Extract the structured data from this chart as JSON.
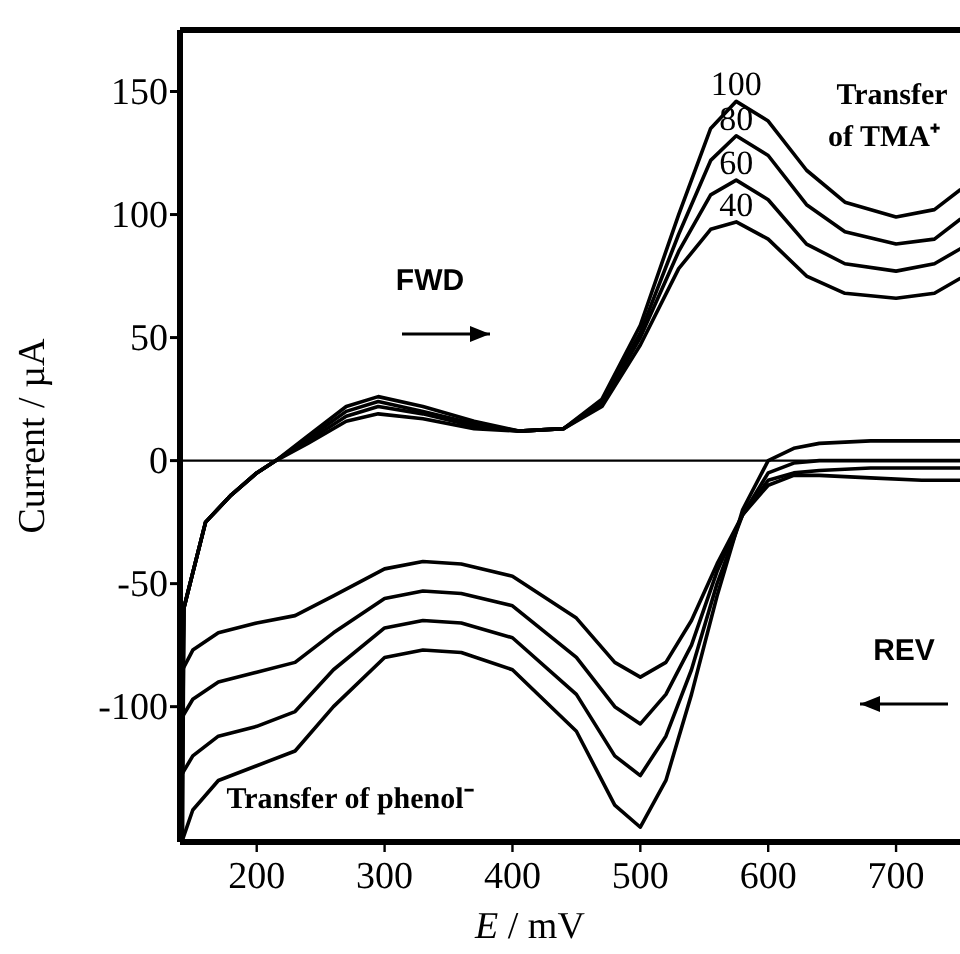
{
  "chart_data": {
    "type": "line",
    "xlabel": "E / mV",
    "ylabel": "Current / µA",
    "xlim": [
      140,
      750
    ],
    "ylim": [
      -155,
      175
    ],
    "xticks": [
      200,
      300,
      400,
      500,
      600,
      700
    ],
    "yticks": [
      150,
      100,
      50,
      0,
      -50,
      -100
    ],
    "grid": false,
    "marker": "none",
    "line_style": "solid",
    "ref_lines": [
      {
        "axis": "y",
        "value": 0,
        "label": null,
        "color": "#000000"
      }
    ],
    "annotations": [
      "FWD",
      "REV",
      "Transfer of TMA⁺",
      "Transfer of phenol⁻"
    ],
    "series": [
      {
        "name": "100",
        "color": "#000000",
        "x": [
          142,
          143,
          160,
          180,
          200,
          215,
          240,
          270,
          295,
          330,
          370,
          405,
          440,
          470,
          500,
          530,
          555,
          575,
          600,
          630,
          660,
          700,
          730,
          750
        ],
        "values": [
          -154,
          -60,
          -25,
          -14,
          -5,
          0,
          10,
          22,
          26,
          22,
          16,
          12,
          13,
          25,
          55,
          100,
          135,
          146,
          138,
          118,
          105,
          99,
          102,
          110
        ]
      },
      {
        "name": "80",
        "color": "#000000",
        "x": [
          142,
          143,
          160,
          180,
          200,
          215,
          240,
          270,
          295,
          330,
          370,
          405,
          440,
          470,
          500,
          530,
          555,
          575,
          600,
          630,
          660,
          700,
          730,
          750
        ],
        "values": [
          -127,
          -60,
          -25,
          -14,
          -5,
          0,
          9,
          20,
          24,
          20,
          15,
          12,
          13,
          24,
          52,
          92,
          122,
          132,
          124,
          104,
          93,
          88,
          90,
          98
        ]
      },
      {
        "name": "60",
        "color": "#000000",
        "x": [
          142,
          143,
          160,
          180,
          200,
          215,
          240,
          270,
          295,
          330,
          370,
          405,
          440,
          470,
          500,
          530,
          555,
          575,
          600,
          630,
          660,
          700,
          730,
          750
        ],
        "values": [
          -104,
          -60,
          -25,
          -14,
          -5,
          0,
          8,
          18,
          22,
          19,
          14,
          12,
          13,
          23,
          50,
          85,
          108,
          114,
          106,
          88,
          80,
          77,
          80,
          86
        ]
      },
      {
        "name": "40",
        "color": "#000000",
        "x": [
          142,
          143,
          160,
          180,
          200,
          215,
          240,
          270,
          295,
          330,
          370,
          405,
          440,
          470,
          500,
          530,
          555,
          575,
          600,
          630,
          660,
          700,
          730,
          750
        ],
        "values": [
          -85,
          -60,
          -25,
          -14,
          -5,
          0,
          7,
          16,
          19,
          17,
          13,
          12,
          13,
          22,
          47,
          78,
          94,
          97,
          90,
          75,
          68,
          66,
          68,
          74
        ]
      },
      {
        "color": "#000000",
        "x": [
          750,
          720,
          680,
          640,
          620,
          600,
          580,
          560,
          540,
          520,
          500,
          480,
          450,
          400,
          360,
          330,
          300,
          260,
          230,
          200,
          170,
          150,
          142
        ],
        "values": [
          8,
          8,
          8,
          7,
          5,
          0,
          -20,
          -55,
          -95,
          -130,
          -149,
          -140,
          -110,
          -85,
          -78,
          -77,
          -80,
          -100,
          -118,
          -124,
          -130,
          -142,
          -154
        ]
      },
      {
        "color": "#000000",
        "x": [
          750,
          720,
          680,
          640,
          620,
          600,
          580,
          560,
          540,
          520,
          500,
          480,
          450,
          400,
          360,
          330,
          300,
          260,
          230,
          200,
          170,
          150,
          142
        ],
        "values": [
          0,
          0,
          0,
          0,
          -1,
          -5,
          -22,
          -50,
          -85,
          -112,
          -128,
          -120,
          -95,
          -72,
          -66,
          -65,
          -68,
          -85,
          -102,
          -108,
          -112,
          -120,
          -127
        ]
      },
      {
        "color": "#000000",
        "x": [
          750,
          720,
          680,
          640,
          620,
          600,
          580,
          560,
          540,
          520,
          500,
          480,
          450,
          400,
          360,
          330,
          300,
          260,
          230,
          200,
          170,
          150,
          142
        ],
        "values": [
          -3,
          -3,
          -3,
          -4,
          -5,
          -8,
          -22,
          -45,
          -75,
          -95,
          -107,
          -100,
          -80,
          -59,
          -54,
          -53,
          -56,
          -70,
          -82,
          -86,
          -90,
          -97,
          -104
        ]
      },
      {
        "color": "#000000",
        "x": [
          750,
          720,
          680,
          640,
          620,
          600,
          580,
          560,
          540,
          520,
          500,
          480,
          450,
          400,
          360,
          330,
          300,
          260,
          230,
          200,
          170,
          150,
          142
        ],
        "values": [
          -8,
          -8,
          -7,
          -6,
          -6,
          -10,
          -22,
          -42,
          -65,
          -82,
          -88,
          -82,
          -64,
          -47,
          -42,
          -41,
          -44,
          -55,
          -63,
          -66,
          -70,
          -77,
          -85
        ]
      }
    ]
  }
}
